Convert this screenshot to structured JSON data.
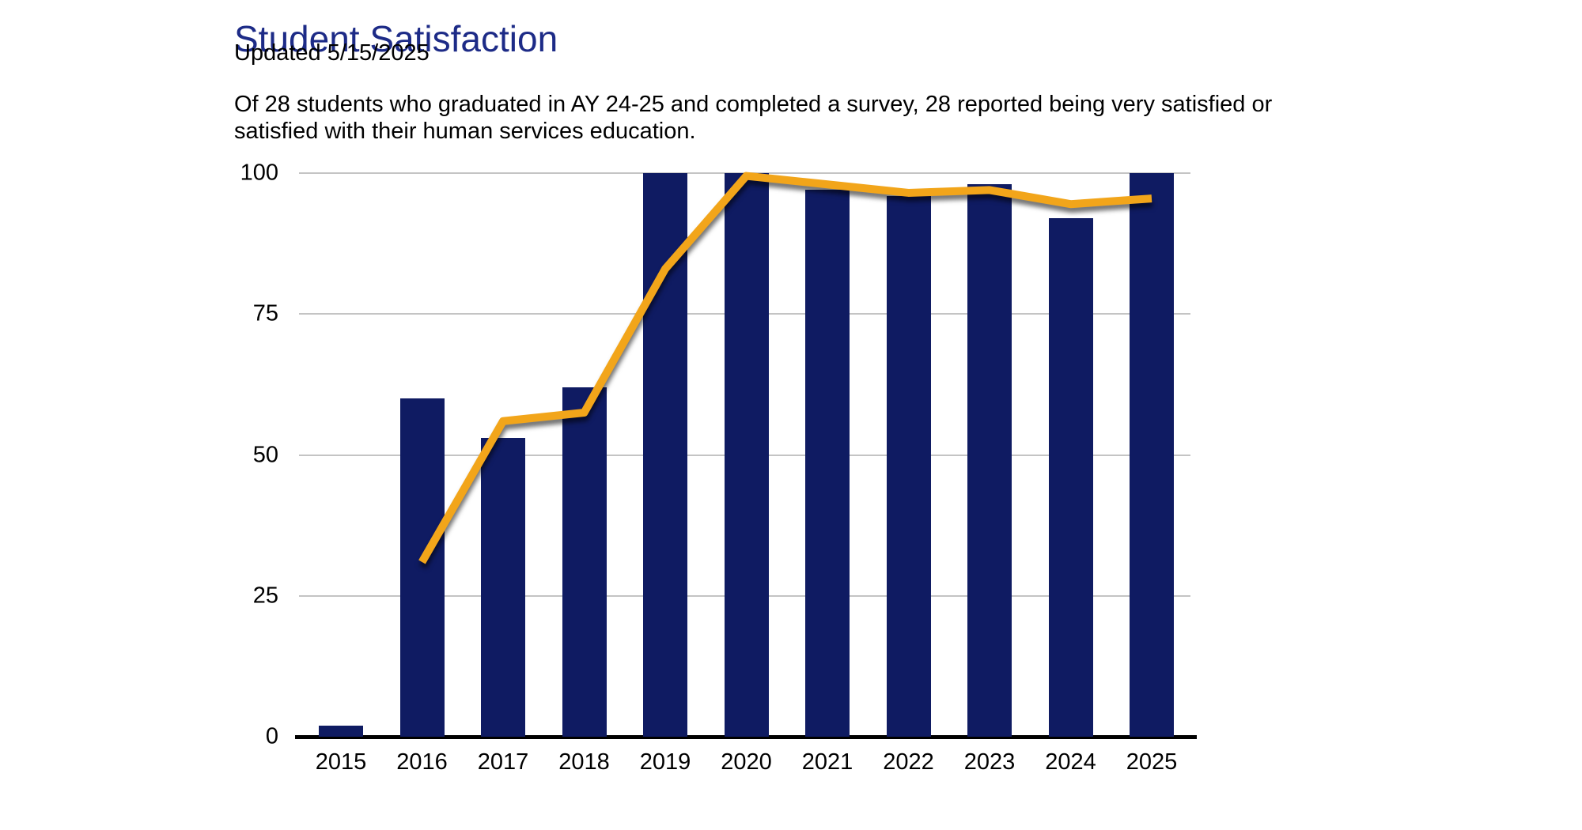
{
  "header": {
    "title": "Student Satisfaction",
    "updated": "Updated 5/15/2025",
    "description": "Of 28 students who graduated in AY 24-25 and completed a survey, 28 reported being very satisfied or satisfied with their human services education."
  },
  "colors": {
    "title_text": "#1d2b87",
    "body_text": "#000000",
    "bar_fill": "#0f1b62",
    "line_stroke": "#f2a51a",
    "gridline": "#c4c4c4",
    "axis_line": "#000000",
    "background": "#ffffff"
  },
  "chart_data": {
    "type": "bar",
    "subtype": "bar-line-combo",
    "title": "Student Satisfaction",
    "xlabel": "",
    "ylabel": "",
    "ylim": [
      0,
      100
    ],
    "y_ticks": [
      0,
      25,
      50,
      75,
      100
    ],
    "grid": true,
    "legend_position": "none",
    "categories": [
      "2015",
      "2016",
      "2017",
      "2018",
      "2019",
      "2020",
      "2021",
      "2022",
      "2023",
      "2024",
      "2025"
    ],
    "series": [
      {
        "name": "bars",
        "type": "bar",
        "color": "#0f1b62",
        "values": [
          2,
          60,
          53,
          62,
          100,
          100,
          97,
          96,
          98,
          92,
          100
        ]
      },
      {
        "name": "line",
        "type": "line",
        "color": "#f2a51a",
        "values": [
          null,
          31,
          56,
          57.5,
          83,
          99.5,
          98,
          96.5,
          97,
          94.5,
          95.5
        ]
      }
    ]
  }
}
